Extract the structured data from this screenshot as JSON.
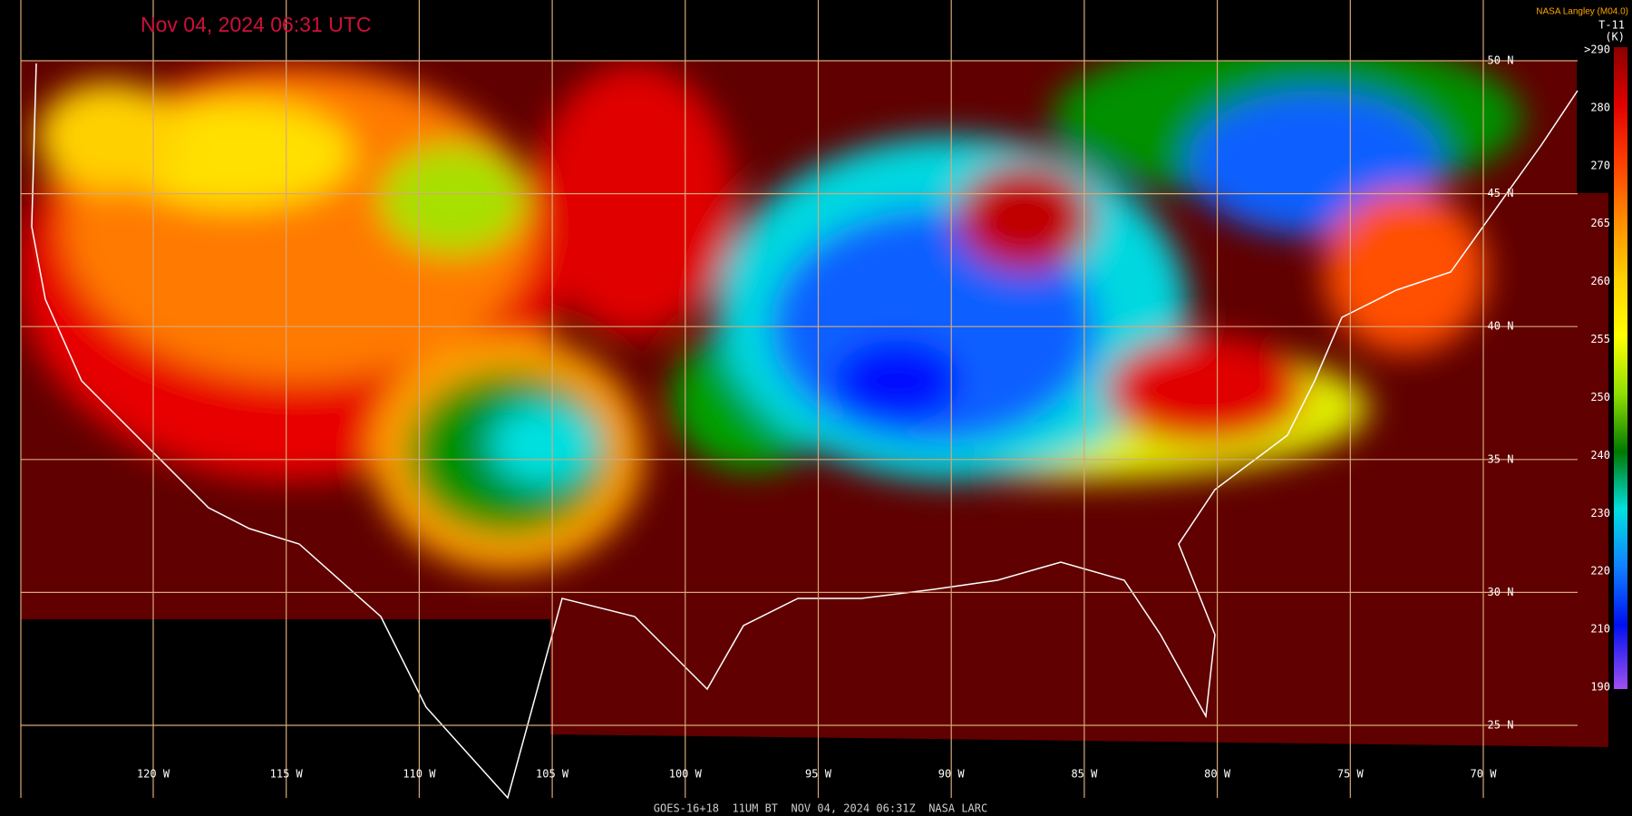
{
  "header": {
    "timestamp": "Nov 04, 2024 06:31 UTC",
    "source": "NASA Langley (M04.0)"
  },
  "colorbar": {
    "channel": "T-11",
    "unit": "(K)",
    "labels": [
      ">290",
      "280",
      "270",
      "265",
      "260",
      "255",
      "250",
      "240",
      "230",
      "220",
      "210",
      "190"
    ]
  },
  "grid": {
    "latitudes": [
      "50 N",
      "45 N",
      "40 N",
      "35 N",
      "30 N",
      "25 N"
    ],
    "longitudes": [
      "120 W",
      "115 W",
      "110 W",
      "105 W",
      "100 W",
      "95 W",
      "90 W",
      "85 W",
      "80 W",
      "75 W",
      "70 W"
    ]
  },
  "footer": "GOES-16+18  11UM BT  NOV 04, 2024 06:31Z  NASA LARC"
}
